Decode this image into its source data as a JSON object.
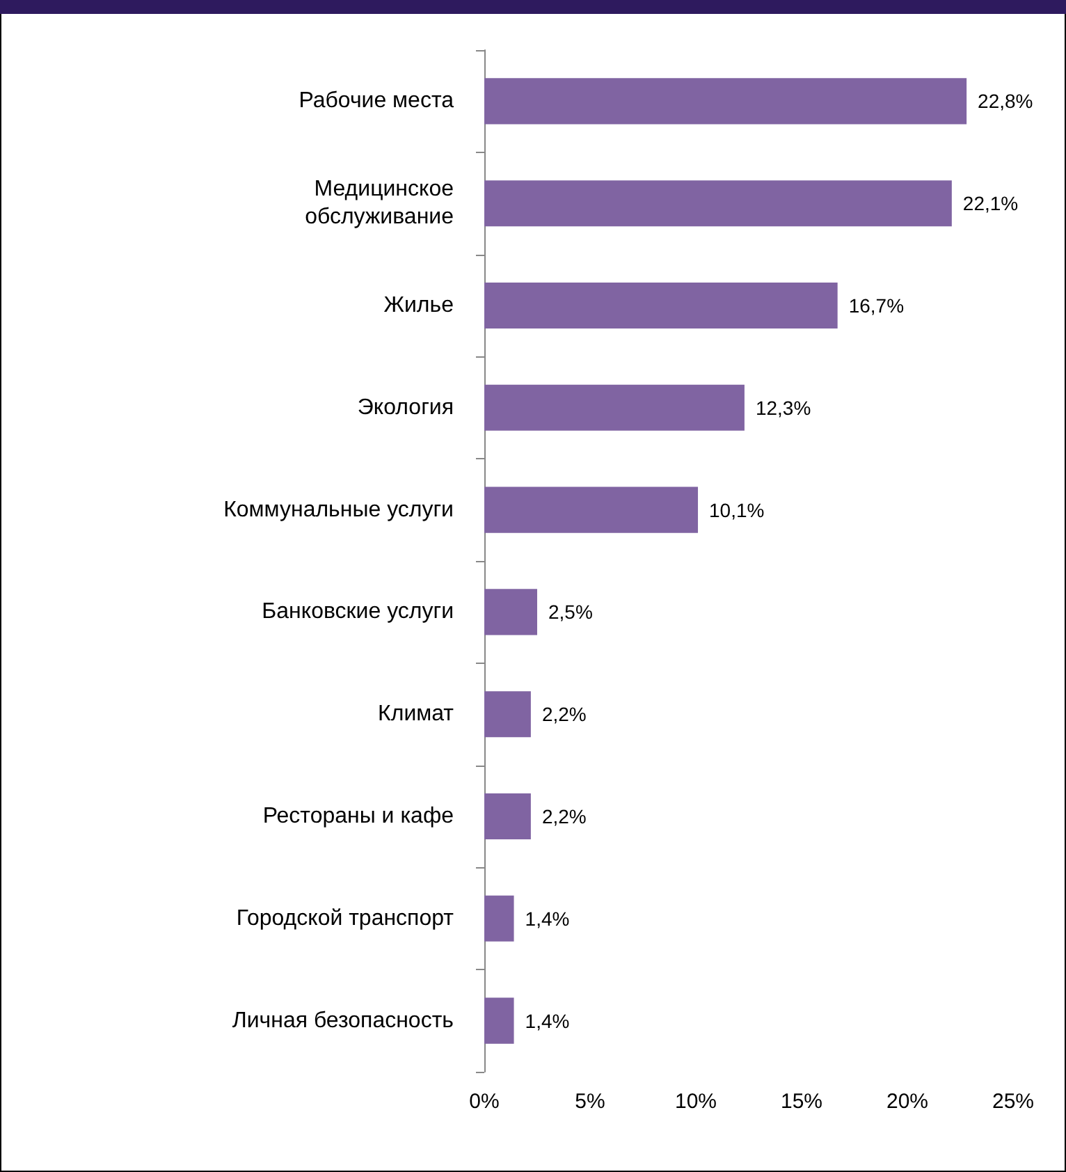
{
  "chart_data": {
    "type": "bar",
    "orientation": "horizontal",
    "categories": [
      "Рабочие места",
      "Медицинское\nобслуживание",
      "Жилье",
      "Экология",
      "Коммунальные услуги",
      "Банковские услуги",
      "Климат",
      "Рестораны и кафе",
      "Городской транспорт",
      "Личная безопасность"
    ],
    "values": [
      22.8,
      22.1,
      16.7,
      12.3,
      10.1,
      2.5,
      2.2,
      2.2,
      1.4,
      1.4
    ],
    "value_labels": [
      "22,8%",
      "22,1%",
      "16,7%",
      "12,3%",
      "10,1%",
      "2,5%",
      "2,2%",
      "2,2%",
      "1,4%",
      "1,4%"
    ],
    "color": "#8064a2",
    "xlim": [
      0,
      25
    ],
    "xticks": [
      {
        "value": 0,
        "label": "0%"
      },
      {
        "value": 5,
        "label": "5%"
      },
      {
        "value": 10,
        "label": "10%"
      },
      {
        "value": 15,
        "label": "15%"
      },
      {
        "value": 20,
        "label": "20%"
      },
      {
        "value": 25,
        "label": "25%"
      }
    ],
    "grid": false
  }
}
